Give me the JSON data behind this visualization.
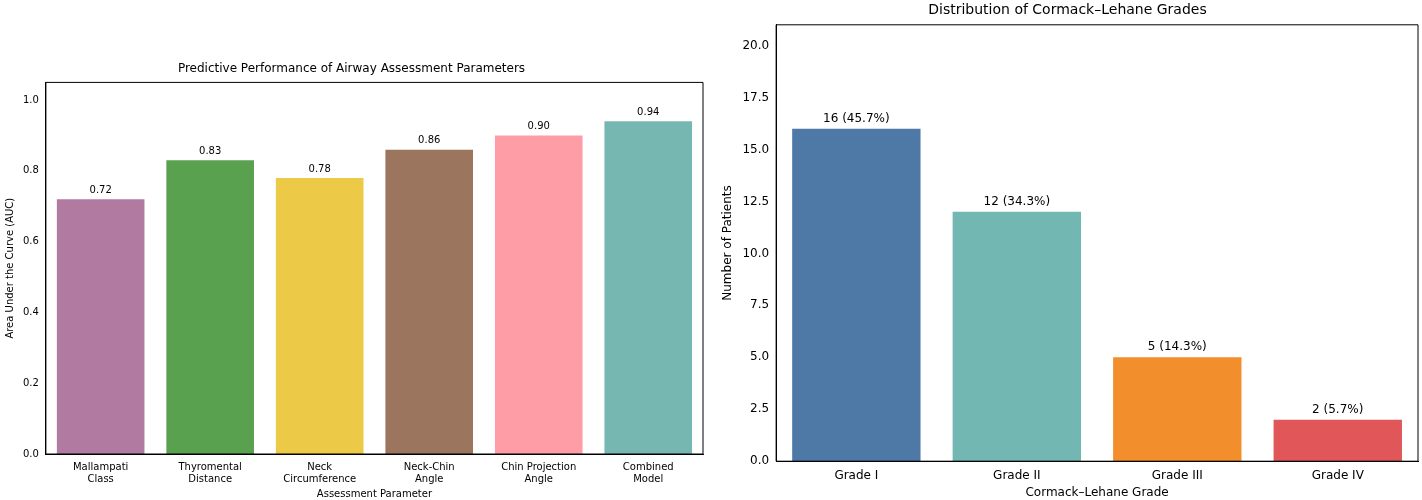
{
  "chart_data": [
    {
      "type": "bar",
      "title": "Predictive Performance of Airway Assessment Parameters",
      "xlabel": "Assessment Parameter",
      "ylabel": "Area Under the Curve (AUC)",
      "categories": [
        "Mallampati\nClass",
        "Thyromental\nDistance",
        "Neck\nCircumference",
        "Neck-Chin\nAngle",
        "Chin Projection\nAngle",
        "Combined\nModel"
      ],
      "values": [
        0.72,
        0.83,
        0.78,
        0.86,
        0.9,
        0.94
      ],
      "colors": [
        "#b07aa1",
        "#59a14f",
        "#edc948",
        "#9c755f",
        "#ff9da7",
        "#76b7b2"
      ],
      "value_labels": [
        "0.72",
        "0.83",
        "0.78",
        "0.86",
        "0.90",
        "0.94"
      ],
      "ylim": [
        0,
        1.05
      ],
      "yticks": [
        {
          "value": 0,
          "label": "0.0"
        },
        {
          "value": 0.2,
          "label": "0.2"
        },
        {
          "value": 0.4,
          "label": "0.4"
        },
        {
          "value": 0.6,
          "label": "0.6"
        },
        {
          "value": 0.8,
          "label": "0.8"
        },
        {
          "value": 1,
          "label": "1.0"
        }
      ],
      "grid": false,
      "legend": false
    },
    {
      "type": "bar",
      "title": "Distribution of Cormack–Lehane Grades",
      "xlabel": "Cormack–Lehane Grade",
      "ylabel": "Number of Patients",
      "categories": [
        "Grade I",
        "Grade II",
        "Grade III",
        "Grade IV"
      ],
      "values": [
        16,
        12,
        5,
        2
      ],
      "colors": [
        "#4e79a7",
        "#72b7b2",
        "#f28e2b",
        "#e15759"
      ],
      "value_labels": [
        "16 (45.7%)",
        "12 (34.3%)",
        "5 (14.3%)",
        "2 (5.7%)"
      ],
      "ylim": [
        0,
        21
      ],
      "yticks": [
        {
          "value": 0,
          "label": "0.0"
        },
        {
          "value": 2.5,
          "label": "2.5"
        },
        {
          "value": 5,
          "label": "5.0"
        },
        {
          "value": 7.5,
          "label": "7.5"
        },
        {
          "value": 10,
          "label": "10.0"
        },
        {
          "value": 12.5,
          "label": "12.5"
        },
        {
          "value": 15,
          "label": "15.0"
        },
        {
          "value": 17.5,
          "label": "17.5"
        },
        {
          "value": 20,
          "label": "20.0"
        }
      ],
      "grid": false,
      "legend": false
    }
  ]
}
